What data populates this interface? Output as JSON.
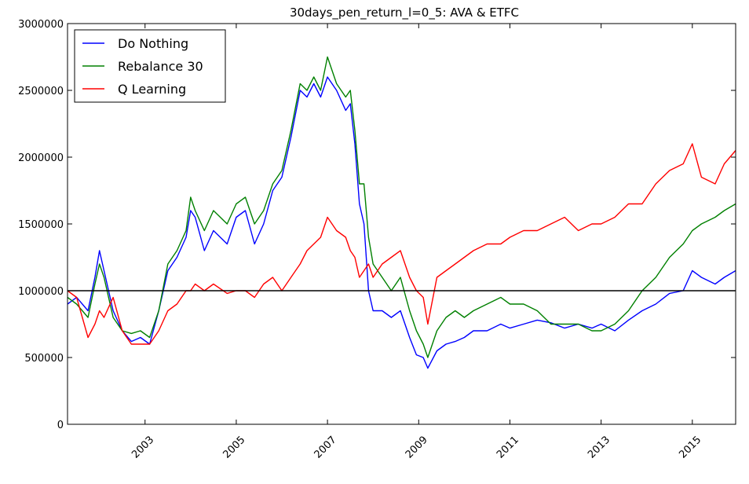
{
  "chart_data": {
    "type": "line",
    "title": "30days_pen_return_l=0_5: AVA & ETFC",
    "xlabel": "",
    "ylabel": "",
    "xlim": [
      2001.3,
      2015.95
    ],
    "ylim": [
      0,
      3000000
    ],
    "x_ticks": [
      2003,
      2005,
      2007,
      2009,
      2011,
      2013,
      2015
    ],
    "x_tick_labels": [
      "2003",
      "2005",
      "2007",
      "2009",
      "2011",
      "2013",
      "2015"
    ],
    "y_ticks": [
      0,
      500000,
      1000000,
      1500000,
      2000000,
      2500000,
      3000000
    ],
    "y_tick_labels": [
      "0",
      "500000",
      "1000000",
      "1500000",
      "2000000",
      "2500000",
      "3000000"
    ],
    "grid": false,
    "legend_position": "top-left",
    "reference_line": {
      "y": 1000000,
      "color": "#000000"
    },
    "series": [
      {
        "name": "Do Nothing",
        "color": "#0000ff",
        "x": [
          2001.3,
          2001.5,
          2001.75,
          2001.9,
          2002.0,
          2002.1,
          2002.3,
          2002.5,
          2002.7,
          2002.9,
          2003.1,
          2003.3,
          2003.5,
          2003.7,
          2003.9,
          2004.0,
          2004.1,
          2004.3,
          2004.5,
          2004.8,
          2005.0,
          2005.2,
          2005.4,
          2005.6,
          2005.8,
          2006.0,
          2006.2,
          2006.4,
          2006.55,
          2006.7,
          2006.85,
          2007.0,
          2007.2,
          2007.4,
          2007.5,
          2007.6,
          2007.7,
          2007.8,
          2007.9,
          2008.0,
          2008.2,
          2008.4,
          2008.6,
          2008.8,
          2008.95,
          2009.1,
          2009.2,
          2009.4,
          2009.6,
          2009.8,
          2010.0,
          2010.2,
          2010.5,
          2010.8,
          2011.0,
          2011.3,
          2011.6,
          2011.9,
          2012.2,
          2012.5,
          2012.8,
          2013.0,
          2013.3,
          2013.6,
          2013.9,
          2014.2,
          2014.5,
          2014.8,
          2015.0,
          2015.2,
          2015.5,
          2015.7,
          2015.95
        ],
        "values": [
          900000,
          950000,
          850000,
          1100000,
          1300000,
          1150000,
          850000,
          700000,
          620000,
          650000,
          600000,
          850000,
          1150000,
          1250000,
          1400000,
          1600000,
          1550000,
          1300000,
          1450000,
          1350000,
          1550000,
          1600000,
          1350000,
          1500000,
          1750000,
          1850000,
          2150000,
          2500000,
          2450000,
          2550000,
          2450000,
          2600000,
          2500000,
          2350000,
          2400000,
          2100000,
          1650000,
          1500000,
          1000000,
          850000,
          850000,
          800000,
          850000,
          650000,
          520000,
          500000,
          420000,
          550000,
          600000,
          620000,
          650000,
          700000,
          700000,
          750000,
          720000,
          750000,
          780000,
          760000,
          720000,
          750000,
          720000,
          750000,
          700000,
          780000,
          850000,
          900000,
          980000,
          1000000,
          1150000,
          1100000,
          1050000,
          1100000,
          1150000
        ]
      },
      {
        "name": "Rebalance 30",
        "color": "#008000",
        "x": [
          2001.3,
          2001.5,
          2001.75,
          2001.9,
          2002.0,
          2002.1,
          2002.3,
          2002.5,
          2002.7,
          2002.9,
          2003.1,
          2003.3,
          2003.5,
          2003.7,
          2003.9,
          2004.0,
          2004.1,
          2004.3,
          2004.5,
          2004.8,
          2005.0,
          2005.2,
          2005.4,
          2005.6,
          2005.8,
          2006.0,
          2006.2,
          2006.4,
          2006.55,
          2006.7,
          2006.85,
          2007.0,
          2007.2,
          2007.4,
          2007.5,
          2007.6,
          2007.7,
          2007.8,
          2007.9,
          2008.0,
          2008.2,
          2008.4,
          2008.6,
          2008.8,
          2008.95,
          2009.1,
          2009.2,
          2009.4,
          2009.6,
          2009.8,
          2010.0,
          2010.2,
          2010.5,
          2010.8,
          2011.0,
          2011.3,
          2011.6,
          2011.9,
          2012.2,
          2012.5,
          2012.8,
          2013.0,
          2013.3,
          2013.6,
          2013.9,
          2014.2,
          2014.5,
          2014.8,
          2015.0,
          2015.2,
          2015.5,
          2015.7,
          2015.95
        ],
        "values": [
          950000,
          900000,
          800000,
          1050000,
          1200000,
          1100000,
          800000,
          700000,
          680000,
          700000,
          650000,
          850000,
          1200000,
          1300000,
          1450000,
          1700000,
          1600000,
          1450000,
          1600000,
          1500000,
          1650000,
          1700000,
          1500000,
          1600000,
          1800000,
          1900000,
          2200000,
          2550000,
          2500000,
          2600000,
          2500000,
          2750000,
          2550000,
          2450000,
          2500000,
          2200000,
          1800000,
          1800000,
          1400000,
          1200000,
          1100000,
          1000000,
          1100000,
          850000,
          700000,
          600000,
          500000,
          700000,
          800000,
          850000,
          800000,
          850000,
          900000,
          950000,
          900000,
          900000,
          850000,
          750000,
          750000,
          750000,
          700000,
          700000,
          750000,
          850000,
          1000000,
          1100000,
          1250000,
          1350000,
          1450000,
          1500000,
          1550000,
          1600000,
          1650000
        ]
      },
      {
        "name": "Q Learning",
        "color": "#ff0000",
        "x": [
          2001.3,
          2001.5,
          2001.75,
          2001.9,
          2002.0,
          2002.1,
          2002.3,
          2002.5,
          2002.7,
          2002.9,
          2003.1,
          2003.3,
          2003.5,
          2003.7,
          2003.9,
          2004.0,
          2004.1,
          2004.3,
          2004.5,
          2004.8,
          2005.0,
          2005.2,
          2005.4,
          2005.6,
          2005.8,
          2006.0,
          2006.2,
          2006.4,
          2006.55,
          2006.7,
          2006.85,
          2007.0,
          2007.2,
          2007.4,
          2007.5,
          2007.6,
          2007.7,
          2007.8,
          2007.9,
          2008.0,
          2008.2,
          2008.4,
          2008.6,
          2008.8,
          2008.95,
          2009.1,
          2009.2,
          2009.4,
          2009.6,
          2009.8,
          2010.0,
          2010.2,
          2010.5,
          2010.8,
          2011.0,
          2011.3,
          2011.6,
          2011.9,
          2012.2,
          2012.5,
          2012.8,
          2013.0,
          2013.3,
          2013.6,
          2013.9,
          2014.2,
          2014.5,
          2014.8,
          2015.0,
          2015.2,
          2015.5,
          2015.7,
          2015.95
        ],
        "values": [
          1000000,
          950000,
          650000,
          750000,
          850000,
          800000,
          950000,
          700000,
          600000,
          600000,
          600000,
          700000,
          850000,
          900000,
          1000000,
          1000000,
          1050000,
          1000000,
          1050000,
          980000,
          1000000,
          1000000,
          950000,
          1050000,
          1100000,
          1000000,
          1100000,
          1200000,
          1300000,
          1350000,
          1400000,
          1550000,
          1450000,
          1400000,
          1300000,
          1250000,
          1100000,
          1150000,
          1200000,
          1100000,
          1200000,
          1250000,
          1300000,
          1100000,
          1000000,
          950000,
          750000,
          1100000,
          1150000,
          1200000,
          1250000,
          1300000,
          1350000,
          1350000,
          1400000,
          1450000,
          1450000,
          1500000,
          1550000,
          1450000,
          1500000,
          1500000,
          1550000,
          1650000,
          1650000,
          1800000,
          1900000,
          1950000,
          2100000,
          1850000,
          1800000,
          1950000,
          2050000
        ]
      }
    ]
  }
}
